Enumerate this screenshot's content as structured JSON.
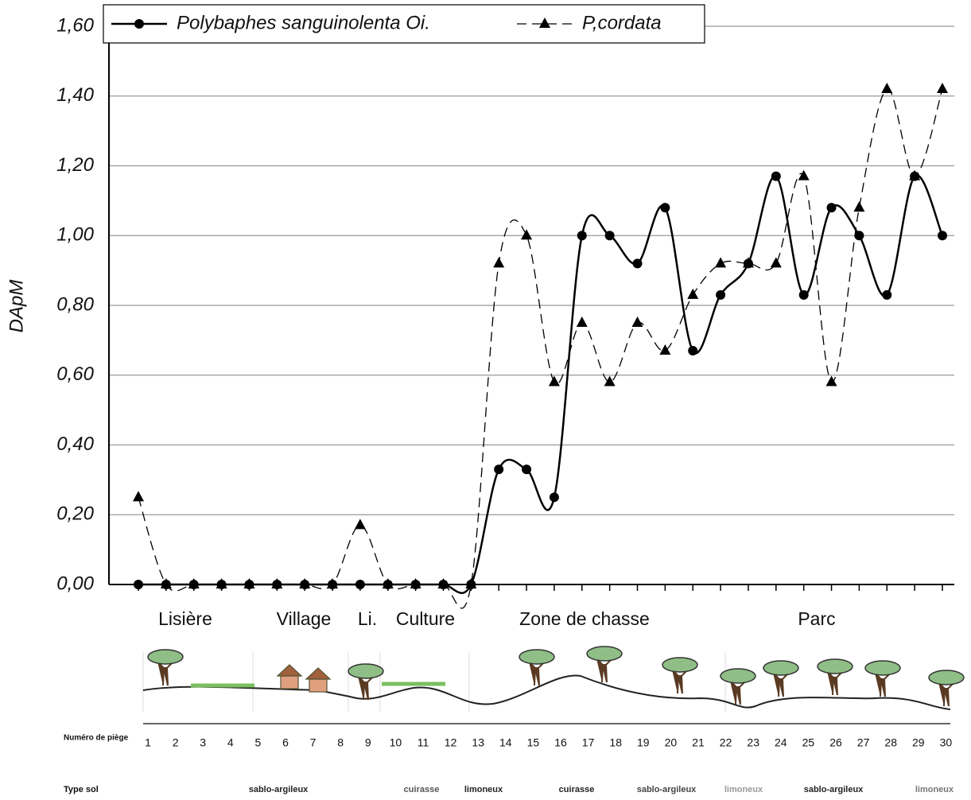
{
  "chart_data": {
    "type": "line",
    "y_label": "DApM",
    "x": [
      1,
      2,
      3,
      4,
      5,
      6,
      7,
      8,
      9,
      10,
      11,
      12,
      13,
      14,
      15,
      16,
      17,
      18,
      19,
      20,
      21,
      22,
      23,
      24,
      25,
      26,
      27,
      28,
      29,
      30
    ],
    "xlim": [
      1,
      30
    ],
    "ylim": [
      0,
      1.6
    ],
    "yticks": [
      {
        "value": 0,
        "label": "0,00"
      },
      {
        "value": 0.2,
        "label": "0,20"
      },
      {
        "value": 0.4,
        "label": "0,40"
      },
      {
        "value": 0.6,
        "label": "0,60"
      },
      {
        "value": 0.8,
        "label": "0,80"
      },
      {
        "value": 1.0,
        "label": "1,00"
      },
      {
        "value": 1.2,
        "label": "1,20"
      },
      {
        "value": 1.4,
        "label": "1,40"
      },
      {
        "value": 1.6,
        "label": "1,60"
      }
    ],
    "grid": true,
    "legend": "top",
    "series": [
      {
        "name": "Polybaphes sanguinolenta Oi.",
        "color": "#000000",
        "marker": "circle",
        "dash": false,
        "values": [
          0,
          0,
          0,
          0,
          0,
          0,
          0,
          0,
          0,
          0,
          0,
          0,
          0,
          0.33,
          0.33,
          0.25,
          1.0,
          1.0,
          0.92,
          1.08,
          0.67,
          0.83,
          0.92,
          1.17,
          0.83,
          1.08,
          1.0,
          0.83,
          1.17,
          1.0
        ]
      },
      {
        "name": "P,cordata",
        "color": "#000000",
        "marker": "triangle",
        "dash": true,
        "values": [
          0.25,
          0,
          0,
          0,
          0,
          0,
          0,
          0,
          0.17,
          0,
          0,
          0,
          0,
          0.92,
          1.0,
          0.58,
          0.75,
          0.58,
          0.75,
          0.67,
          0.83,
          0.92,
          0.92,
          0.92,
          1.17,
          0.58,
          1.08,
          1.42,
          1.17,
          1.42
        ]
      }
    ],
    "zones": [
      "Lisière",
      "Village",
      "Li.",
      "Culture",
      "Zone de chasse",
      "Parc"
    ],
    "trap_row_label": "Numéro de piège",
    "soil_row_label": "Type sol",
    "soil_types": [
      "sablo-argileux",
      "cuirasse",
      "limoneux",
      "cuirasse",
      "sablo-argileux",
      "limoneux",
      "sablo-argileux",
      "limoneux"
    ]
  }
}
